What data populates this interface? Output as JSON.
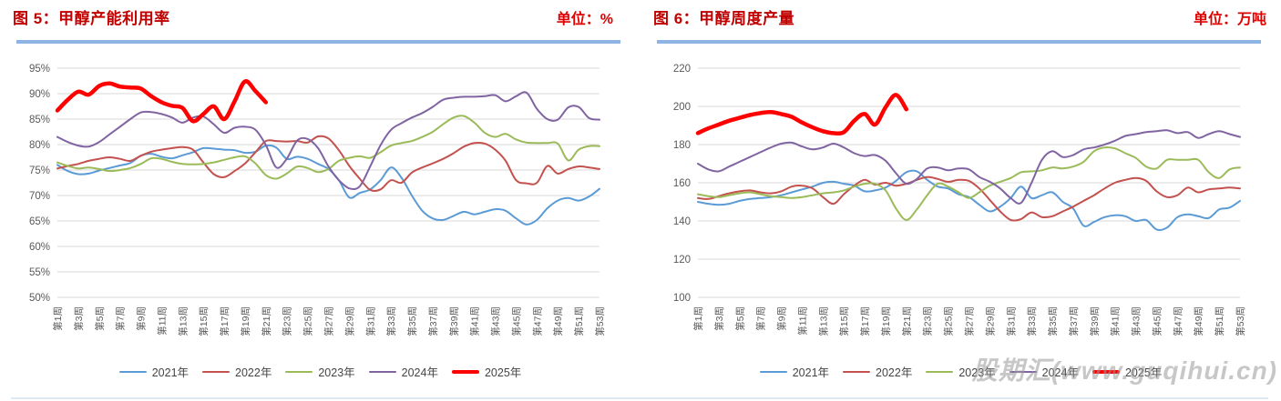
{
  "watermark": "股期汇(www.guqihui.cn)",
  "chart_data": [
    {
      "type": "line",
      "title": "图 5：甲醇产能利用率",
      "unit_label": "单位：%",
      "xlabel": "",
      "ylabel": "",
      "y_min": 50,
      "y_max": 95,
      "y_step": 5,
      "y_ticks": [
        "50%",
        "55%",
        "60%",
        "65%",
        "70%",
        "75%",
        "80%",
        "85%",
        "90%",
        "95%"
      ],
      "weeks_total": 53,
      "x_tick_labels": [
        "第1周",
        "第3周",
        "第5周",
        "第7周",
        "第9周",
        "第11周",
        "第13周",
        "第15周",
        "第17周",
        "第19周",
        "第21周",
        "第23周",
        "第25周",
        "第27周",
        "第29周",
        "第31周",
        "第33周",
        "第35周",
        "第37周",
        "第39周",
        "第41周",
        "第43周",
        "第45周",
        "第47周",
        "第49周",
        "第51周",
        "第53周"
      ],
      "grid": "horizontal",
      "legend_position": "bottom",
      "series": [
        {
          "name": "2021年",
          "color": "#5b9bd5",
          "stroke_width": 2,
          "values": [
            76.0,
            74.8,
            74.2,
            74.3,
            74.9,
            75.4,
            75.9,
            76.4,
            77.8,
            78.2,
            77.6,
            77.3,
            77.9,
            78.5,
            79.3,
            79.2,
            79.0,
            78.9,
            78.4,
            78.6,
            79.8,
            79.4,
            77.2,
            77.6,
            77.2,
            76.2,
            75.2,
            73.0,
            69.6,
            70.5,
            71.2,
            73.0,
            75.5,
            73.5,
            70.0,
            67.0,
            65.5,
            65.2,
            66.0,
            66.8,
            66.3,
            66.8,
            67.3,
            67.0,
            65.5,
            64.3,
            65.2,
            67.5,
            69.0,
            69.5,
            69.0,
            69.8,
            71.3
          ]
        },
        {
          "name": "2022年",
          "color": "#c3514e",
          "stroke_width": 2,
          "values": [
            75.3,
            75.8,
            76.2,
            76.8,
            77.2,
            77.5,
            77.2,
            76.8,
            77.8,
            78.6,
            79.0,
            79.3,
            79.5,
            79.0,
            76.5,
            74.2,
            73.6,
            74.8,
            76.3,
            78.5,
            80.7,
            80.7,
            80.6,
            80.7,
            80.4,
            81.6,
            81.2,
            78.9,
            75.8,
            73.3,
            71.1,
            71.2,
            73.0,
            72.5,
            74.5,
            75.5,
            76.3,
            77.2,
            78.3,
            79.6,
            80.3,
            80.2,
            79.0,
            76.8,
            73.0,
            72.4,
            72.5,
            75.8,
            74.3,
            75.2,
            75.7,
            75.5,
            75.2
          ]
        },
        {
          "name": "2023年",
          "color": "#9bbb59",
          "stroke_width": 2,
          "values": [
            76.5,
            75.8,
            75.3,
            75.5,
            75.2,
            74.8,
            75.0,
            75.4,
            76.2,
            77.3,
            77.2,
            76.6,
            76.2,
            76.1,
            76.2,
            76.5,
            77.0,
            77.5,
            77.7,
            76.3,
            74.0,
            73.3,
            74.3,
            75.7,
            75.4,
            74.6,
            75.2,
            76.8,
            77.4,
            77.7,
            77.4,
            78.5,
            79.8,
            80.3,
            80.7,
            81.5,
            82.5,
            84.0,
            85.3,
            85.6,
            84.3,
            82.3,
            81.5,
            82.1,
            81.0,
            80.4,
            80.3,
            80.3,
            80.2,
            76.9,
            79.0,
            79.7,
            79.7
          ]
        },
        {
          "name": "2024年",
          "color": "#8064a2",
          "stroke_width": 2,
          "values": [
            81.5,
            80.5,
            79.8,
            79.6,
            80.5,
            82.0,
            83.5,
            85.0,
            86.3,
            86.4,
            86.0,
            85.3,
            84.3,
            85.3,
            85.5,
            84.0,
            82.3,
            83.3,
            83.5,
            82.9,
            79.9,
            75.5,
            77.2,
            80.8,
            81.1,
            79.3,
            75.7,
            73.0,
            71.4,
            71.8,
            75.7,
            79.9,
            82.9,
            84.2,
            85.3,
            86.2,
            87.4,
            88.8,
            89.2,
            89.4,
            89.4,
            89.5,
            89.7,
            88.5,
            89.5,
            90.2,
            87.0,
            85.0,
            84.9,
            87.3,
            87.4,
            85.2,
            84.9
          ]
        },
        {
          "name": "2025年",
          "color": "#ff0000",
          "stroke_width": 4.5,
          "values": [
            86.7,
            88.8,
            90.4,
            89.8,
            91.5,
            92.0,
            91.4,
            91.2,
            91.0,
            89.5,
            88.3,
            87.6,
            87.2,
            84.6,
            86.0,
            87.5,
            85.0,
            88.5,
            92.4,
            90.5,
            88.3
          ]
        }
      ]
    },
    {
      "type": "line",
      "title": "图 6：甲醇周度产量",
      "unit_label": "单位：万吨",
      "xlabel": "",
      "ylabel": "",
      "y_min": 100,
      "y_max": 220,
      "y_step": 20,
      "y_ticks": [
        "100",
        "120",
        "140",
        "160",
        "180",
        "200",
        "220"
      ],
      "weeks_total": 53,
      "x_tick_labels": [
        "第1周",
        "第3周",
        "第5周",
        "第7周",
        "第9周",
        "第11周",
        "第13周",
        "第15周",
        "第17周",
        "第19周",
        "第21周",
        "第23周",
        "第25周",
        "第27周",
        "第29周",
        "第31周",
        "第33周",
        "第35周",
        "第37周",
        "第39周",
        "第41周",
        "第43周",
        "第45周",
        "第47周",
        "第49周",
        "第51周",
        "第53周"
      ],
      "grid": "horizontal",
      "legend_position": "bottom",
      "series": [
        {
          "name": "2021年",
          "color": "#5b9bd5",
          "stroke_width": 2,
          "values": [
            150,
            149,
            148.5,
            149,
            150.5,
            151.5,
            152,
            152.5,
            153.5,
            155,
            156.5,
            158,
            160,
            160.5,
            159.5,
            158.5,
            155.5,
            156,
            157.5,
            161,
            165.5,
            166,
            161.5,
            158,
            157,
            154,
            152.5,
            148.5,
            145,
            147.5,
            152,
            158,
            152,
            153.5,
            155,
            150,
            146.5,
            137.5,
            139.5,
            142,
            143,
            142.5,
            140,
            140.5,
            135.5,
            136.5,
            142,
            143.5,
            142.5,
            141.5,
            146,
            147,
            150.5
          ]
        },
        {
          "name": "2022年",
          "color": "#c3514e",
          "stroke_width": 2,
          "values": [
            152,
            151.5,
            153,
            154.5,
            155.5,
            156,
            155,
            154.5,
            155.5,
            158,
            158.5,
            157,
            152.5,
            149,
            154,
            158.5,
            161.5,
            159,
            160,
            158.5,
            159.5,
            161.5,
            163,
            162,
            160.5,
            161.5,
            161,
            157,
            151,
            145,
            140.5,
            141,
            144.5,
            142,
            142.5,
            145,
            147.5,
            150.5,
            153.5,
            157,
            160,
            161.5,
            162.5,
            161,
            155.5,
            152.5,
            153.5,
            157.5,
            155,
            156.5,
            157,
            157.5,
            157
          ]
        },
        {
          "name": "2023年",
          "color": "#9bbb59",
          "stroke_width": 2,
          "values": [
            154,
            153,
            152.5,
            153.5,
            154.5,
            155,
            154,
            153,
            152.5,
            152,
            152.5,
            153.5,
            154.5,
            155,
            156,
            158,
            159.5,
            159.5,
            156,
            146.5,
            140.5,
            146,
            153.5,
            159.5,
            158,
            155,
            152,
            155,
            158.5,
            160.5,
            162.5,
            165.5,
            166,
            166.5,
            168,
            167.5,
            168.5,
            171,
            176.5,
            178.5,
            178,
            175.5,
            173,
            168.5,
            167.5,
            172,
            172,
            172,
            172,
            165.5,
            162.5,
            167,
            168
          ]
        },
        {
          "name": "2024年",
          "color": "#8064a2",
          "stroke_width": 2,
          "values": [
            170,
            167,
            166,
            168.5,
            171,
            173.5,
            176,
            178.5,
            180.5,
            181,
            179,
            177.5,
            178.5,
            180.5,
            178.5,
            175.5,
            174,
            174.5,
            171.5,
            165,
            159.5,
            162,
            167.5,
            168,
            166.5,
            167.5,
            167,
            163,
            160.5,
            157,
            152,
            149.5,
            160,
            172,
            176.5,
            173.5,
            174.5,
            177.5,
            178.5,
            180,
            182,
            184.5,
            185.5,
            186.5,
            187,
            187.5,
            186,
            186.5,
            183.5,
            185.5,
            187,
            185.5,
            184
          ]
        },
        {
          "name": "2025年",
          "color": "#ff0000",
          "stroke_width": 4.5,
          "values": [
            186,
            188.5,
            190.5,
            192.5,
            194,
            195.5,
            196.5,
            197,
            196,
            194.5,
            191.5,
            189,
            187,
            186,
            186.5,
            192.5,
            196,
            190.5,
            199.5,
            206,
            198.5
          ]
        }
      ]
    }
  ]
}
